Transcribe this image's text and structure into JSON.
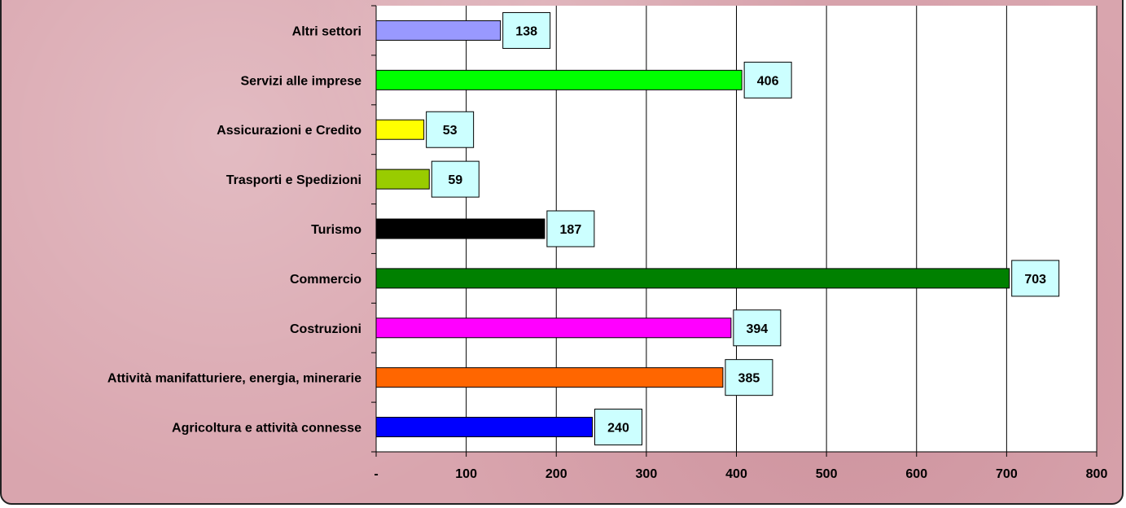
{
  "chart_data": {
    "type": "bar",
    "orientation": "horizontal",
    "categories": [
      "Agricoltura e attività connesse",
      "Attività manifatturiere, energia, minerarie",
      "Costruzioni",
      "Commercio",
      "Turismo",
      "Trasporti e Spedizioni",
      "Assicurazioni e Credito",
      "Servizi alle imprese",
      "Altri settori"
    ],
    "values": [
      240,
      385,
      394,
      703,
      187,
      59,
      53,
      406,
      138
    ],
    "colors": [
      "#0000ff",
      "#ff6600",
      "#ff00ff",
      "#008000",
      "#000000",
      "#99cc00",
      "#ffff00",
      "#00ff00",
      "#9999ff"
    ],
    "xlim": [
      0,
      800
    ],
    "x_ticks": [
      0,
      100,
      200,
      300,
      400,
      500,
      600,
      700,
      800
    ],
    "x_tick_labels": [
      "-",
      "100",
      "200",
      "300",
      "400",
      "500",
      "600",
      "700",
      "800"
    ],
    "grid": true,
    "data_labels": true,
    "data_label_background": "#ccffff",
    "plot_background": "#ffffff"
  }
}
